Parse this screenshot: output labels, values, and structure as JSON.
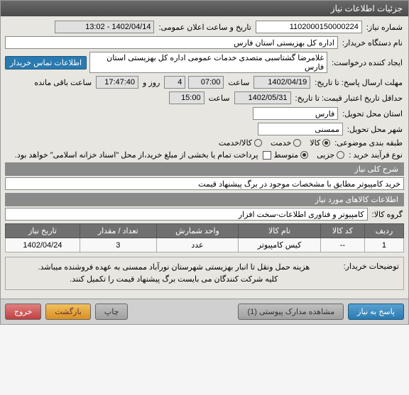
{
  "window": {
    "title": "جزئیات اطلاعات نیاز"
  },
  "r1": {
    "need_no_lbl": "شماره نیاز:",
    "need_no": "1102000150000224",
    "announce_lbl": "تاریخ و ساعت اعلان عمومی:",
    "announce": "1402/04/14 - 13:02"
  },
  "r2": {
    "buyer_lbl": "نام دستگاه خریدار:",
    "buyer": "اداره کل بهزیستی استان فارس"
  },
  "r3": {
    "creator_lbl": "ایجاد کننده درخواست:",
    "creator": "غلامرضا گشتاسبی متصدی خدمات عمومی اداره کل بهزیستی استان فارس",
    "contact_btn": "اطلاعات تماس خریدار"
  },
  "r4": {
    "deadline_lbl": "مهلت ارسال پاسخ: تا تاریخ:",
    "date": "1402/04/19",
    "time_lbl": "ساعت",
    "time": "07:00",
    "days": "4",
    "days_lbl": "روز و",
    "clock": "17:47:40",
    "remain": "ساعت باقی مانده"
  },
  "r5": {
    "validity_lbl": "حداقل تاریخ اعتبار قیمت: تا تاریخ:",
    "date": "1402/05/31",
    "time_lbl": "ساعت",
    "time": "15:00"
  },
  "r6": {
    "province_lbl": "استان محل تحویل:",
    "province": "فارس"
  },
  "r7": {
    "city_lbl": "شهر محل تحویل:",
    "city": "ممسنی"
  },
  "r8": {
    "cat_lbl": "طبقه بندی موضوعی:",
    "opts": [
      "کالا",
      "خدمت",
      "کالا/خدمت"
    ],
    "selected": 0
  },
  "r9": {
    "proc_lbl": "نوع فرآیند خرید :",
    "opts": [
      "جزیی",
      "متوسط"
    ],
    "selected": 1,
    "pay_chk": "پرداخت تمام یا بخشی از مبلغ خرید،از محل \"اسناد خزانه اسلامی\" خواهد بود."
  },
  "summary": {
    "header": "شرح کلی نیاز",
    "text": "خرید کامپیوتر مطابق با مشخصات موجود در برگ پیشنهاد قیمت"
  },
  "goods": {
    "header": "اطلاعات کالاهای مورد نیاز",
    "group_lbl": "گروه کالا:",
    "group": "کامپیوتر و فناوری اطلاعات-سخت افزار"
  },
  "table": {
    "cols": [
      "ردیف",
      "کد کالا",
      "نام کالا",
      "واحد شمارش",
      "تعداد / مقدار",
      "تاریخ نیاز"
    ],
    "rows": [
      [
        "1",
        "--",
        "کیس کامپیوتر",
        "عدد",
        "3",
        "1402/04/24"
      ]
    ]
  },
  "note": {
    "lbl": "توضیحات خریدار:",
    "line1": "هزینه حمل ونقل تا انبار بهزیستی شهرستان نورآباد ممسنی به عهده فروشنده میباشد.",
    "line2": "کلیه شرکت کنندگان می بایست برگ پیشنهاد قیمت را تکمیل کنند."
  },
  "footer": {
    "respond": "پاسخ به نیاز",
    "attach": "مشاهده مدارک پیوستی (1)",
    "print": "چاپ",
    "back": "بازگشت",
    "exit": "خروج"
  }
}
